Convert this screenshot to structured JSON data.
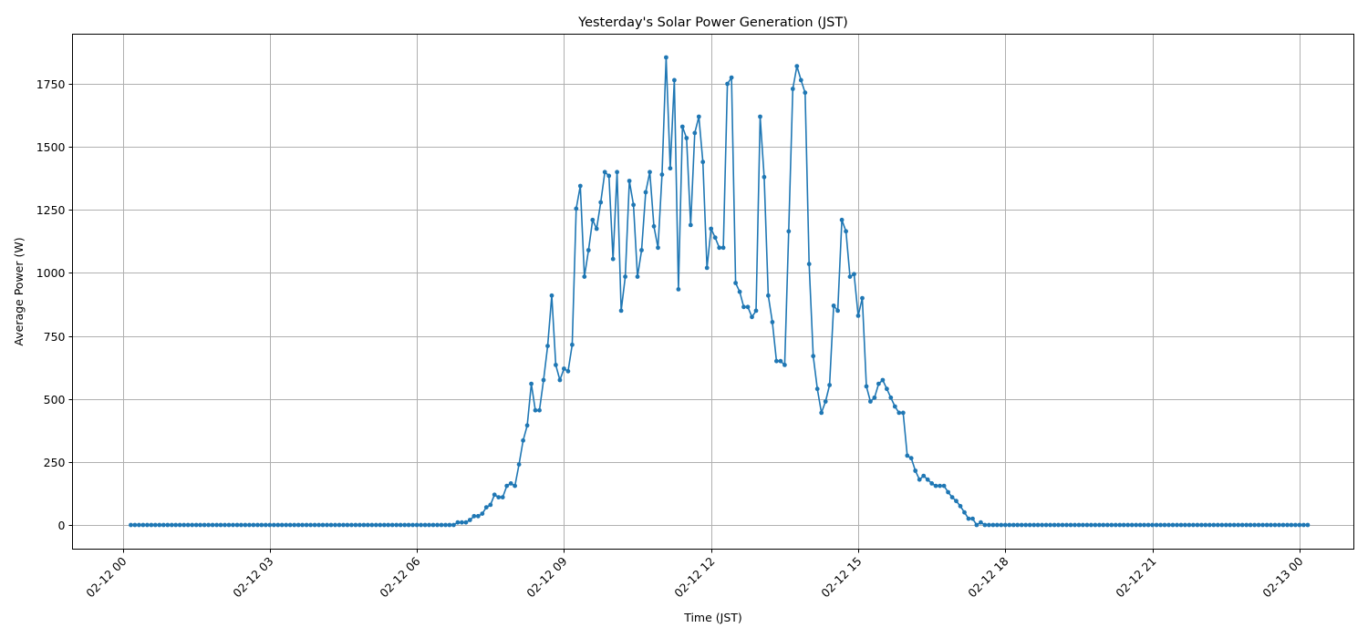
{
  "chart_data": {
    "type": "line",
    "title": "Yesterday's Solar Power Generation (JST)",
    "xlabel": "Time (JST)",
    "ylabel": "Average Power (W)",
    "ylim": [
      -95,
      1945
    ],
    "yticks": [
      0,
      250,
      500,
      750,
      1000,
      1250,
      1500,
      1750
    ],
    "xticks": [
      "02-12 00",
      "02-12 03",
      "02-12 06",
      "02-12 09",
      "02-12 12",
      "02-12 15",
      "02-12 18",
      "02-12 21",
      "02-13 00"
    ],
    "grid": true,
    "legend": null,
    "series_color": "#1f77b4",
    "marker": "circle",
    "x_start": "02-12 00:10",
    "x_end": "02-13 00:00",
    "interval_minutes": 5,
    "series": [
      {
        "name": "Average Power (W)",
        "zero_prefix_count": 80,
        "values_from_06_50": [
          10,
          10,
          10,
          20,
          35,
          35,
          45,
          70,
          80,
          120,
          110,
          110,
          155,
          165,
          155,
          240,
          335,
          395,
          560,
          455,
          455,
          575,
          710,
          910,
          635,
          575,
          620,
          610,
          715,
          1255,
          1345,
          985,
          1090,
          1210,
          1175,
          1280,
          1400,
          1385,
          1055,
          1400,
          850,
          985,
          1365,
          1270,
          985,
          1090,
          1320,
          1400,
          1185,
          1100,
          1390,
          1855,
          1415,
          1765,
          935,
          1580,
          1535,
          1190,
          1555,
          1620,
          1440,
          1020,
          1175,
          1140,
          1100,
          1100,
          1750,
          1775,
          960,
          925,
          865,
          865,
          825,
          850,
          1620,
          1380,
          910,
          805,
          650,
          650,
          635,
          1165,
          1730,
          1820,
          1765,
          1715,
          1035,
          670,
          540,
          445,
          490,
          555,
          870,
          850,
          1210,
          1165,
          985,
          995,
          830,
          900,
          550,
          490,
          505,
          560,
          575,
          540,
          505,
          470,
          445,
          445,
          275,
          265,
          215,
          180,
          195,
          180,
          165,
          155,
          155,
          155,
          130,
          110,
          95,
          75,
          50,
          25,
          25,
          0,
          10,
          0
        ],
        "zero_suffix_count": 79
      }
    ]
  }
}
